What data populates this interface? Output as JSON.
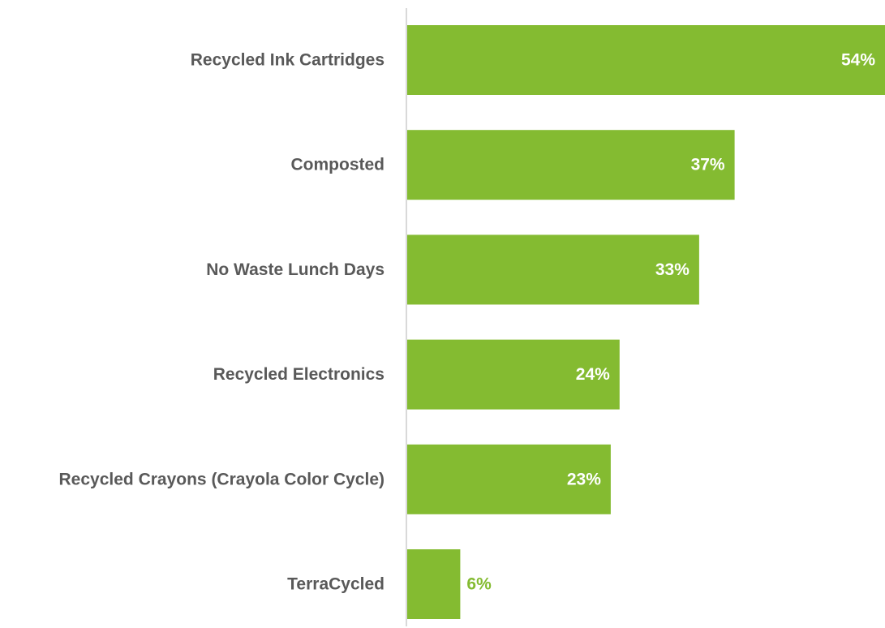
{
  "chart_data": {
    "type": "bar",
    "orientation": "horizontal",
    "title": "",
    "xlabel": "",
    "ylabel": "",
    "categories": [
      "Recycled Ink Cartridges",
      "Composted",
      "No Waste Lunch Days",
      "Recycled Electronics",
      "Recycled Crayons (Crayola Color Cycle)",
      "TerraCycled"
    ],
    "values": [
      54,
      37,
      33,
      24,
      23,
      6
    ],
    "value_labels": [
      "54%",
      "37%",
      "33%",
      "24%",
      "23%",
      "6%"
    ],
    "xlim": [
      0,
      54
    ],
    "grid": false,
    "legend": "none",
    "colors": {
      "bar": "#84BB31",
      "label_inside": "#ffffff",
      "label_outside": "#84BB31",
      "category_text": "#595959",
      "axis": "#d9d9d9"
    }
  }
}
